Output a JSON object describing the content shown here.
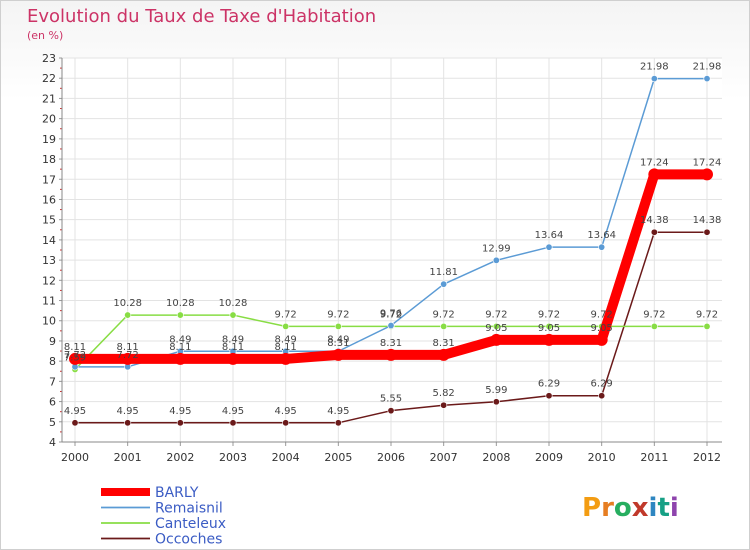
{
  "header": {
    "title": "Evolution du Taux de Taxe d'Habitation",
    "subtitle": "(en %)"
  },
  "brand": {
    "logo_text": "Proxiti"
  },
  "chart_data": {
    "type": "line",
    "x": [
      "2000",
      "2001",
      "2002",
      "2003",
      "2004",
      "2005",
      "2006",
      "2007",
      "2008",
      "2009",
      "2010",
      "2011",
      "2012"
    ],
    "ylim": [
      4,
      23
    ],
    "yticks": [
      4,
      5,
      6,
      7,
      8,
      9,
      10,
      11,
      12,
      13,
      14,
      15,
      16,
      17,
      18,
      19,
      20,
      21,
      22,
      23
    ],
    "grid": true,
    "legend_position": "bottom-left",
    "series": [
      {
        "name": "BARLY",
        "color": "#ff0000",
        "values": [
          8.11,
          8.11,
          8.11,
          8.11,
          8.11,
          8.31,
          8.31,
          8.31,
          9.05,
          9.05,
          9.05,
          17.24,
          17.24
        ],
        "labels": [
          "8.11",
          "8.11",
          "8.11",
          "8.11",
          "8.11",
          "8.31",
          "8.31",
          "8.31",
          "9.05",
          "9.05",
          "9.05",
          "17.24",
          "17.24"
        ]
      },
      {
        "name": "Remaisnil",
        "color": "#5b9bd5",
        "values": [
          7.72,
          7.72,
          8.49,
          8.49,
          8.49,
          8.49,
          9.76,
          11.81,
          12.99,
          13.64,
          13.64,
          21.98,
          21.98
        ],
        "labels": [
          "7.72",
          "7.72",
          "8.49",
          "8.49",
          "8.49",
          "8.49",
          "9.76",
          "11.81",
          "12.99",
          "13.64",
          "13.64",
          "21.98",
          "21.98"
        ]
      },
      {
        "name": "Canteleux",
        "color": "#88dd44",
        "values": [
          7.59,
          10.28,
          10.28,
          10.28,
          9.72,
          9.72,
          9.72,
          9.72,
          9.72,
          9.72,
          9.72,
          9.72,
          9.72
        ],
        "labels": [
          "7.59",
          "10.28",
          "10.28",
          "10.28",
          "9.72",
          "9.72",
          "9.72",
          "9.72",
          "9.72",
          "9.72",
          "9.72",
          "9.72",
          "9.72"
        ]
      },
      {
        "name": "Occoches",
        "color": "#6b1a1a",
        "values": [
          4.95,
          4.95,
          4.95,
          4.95,
          4.95,
          4.95,
          5.55,
          5.82,
          5.99,
          6.29,
          6.29,
          14.38,
          14.38
        ],
        "labels": [
          "4.95",
          "4.95",
          "4.95",
          "4.95",
          "4.95",
          "4.95",
          "5.55",
          "5.82",
          "5.99",
          "6.29",
          "6.29",
          "14.38",
          "14.38"
        ]
      }
    ]
  }
}
